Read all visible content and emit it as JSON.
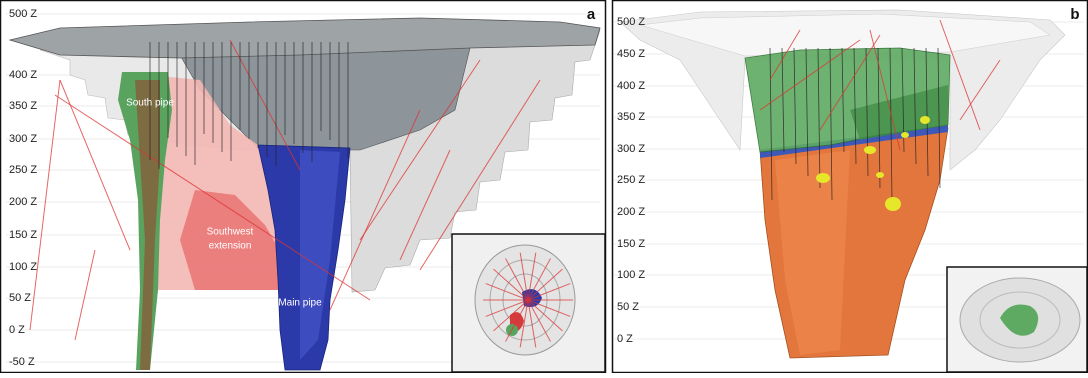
{
  "panel_a": {
    "label": "a",
    "elevations": [
      "500 Z",
      "400 Z",
      "350 Z",
      "300 Z",
      "250 Z",
      "200 Z",
      "150 Z",
      "100 Z",
      "50 Z",
      "0 Z",
      "-50 Z"
    ],
    "annotations": {
      "south_pipe": "South pipe",
      "southwest_extension": [
        "Southwest",
        "extension"
      ],
      "main_pipe": "Main pipe"
    }
  },
  "panel_b": {
    "label": "b",
    "elevations": [
      "500 Z",
      "450 Z",
      "400 Z",
      "350 Z",
      "300 Z",
      "250 Z",
      "200 Z",
      "150 Z",
      "100 Z",
      "50 Z",
      "0 Z"
    ]
  }
}
